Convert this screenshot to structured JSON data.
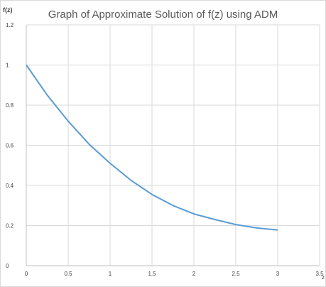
{
  "chart_data": {
    "type": "line",
    "title": "Graph of Approximate Solution of f(z) using ADM",
    "ylabel": "f(z)",
    "xlabel": "z",
    "xlim": [
      0,
      3.5
    ],
    "ylim": [
      0,
      1.2
    ],
    "x_ticks": [
      "0",
      "0.5",
      "1",
      "1.5",
      "2",
      "2.5",
      "3",
      "3.5"
    ],
    "y_ticks": [
      "0",
      "0.2",
      "0.4",
      "0.6",
      "0.8",
      "1",
      "1.2"
    ],
    "grid": true,
    "series": [
      {
        "color": "#5b9bd5",
        "x": [
          0,
          0.25,
          0.5,
          0.75,
          1,
          1.25,
          1.5,
          1.75,
          2,
          2.25,
          2.5,
          2.75,
          3
        ],
        "values": [
          1.0,
          0.85,
          0.72,
          0.605,
          0.51,
          0.425,
          0.355,
          0.3,
          0.258,
          0.23,
          0.205,
          0.188,
          0.178
        ]
      }
    ]
  }
}
